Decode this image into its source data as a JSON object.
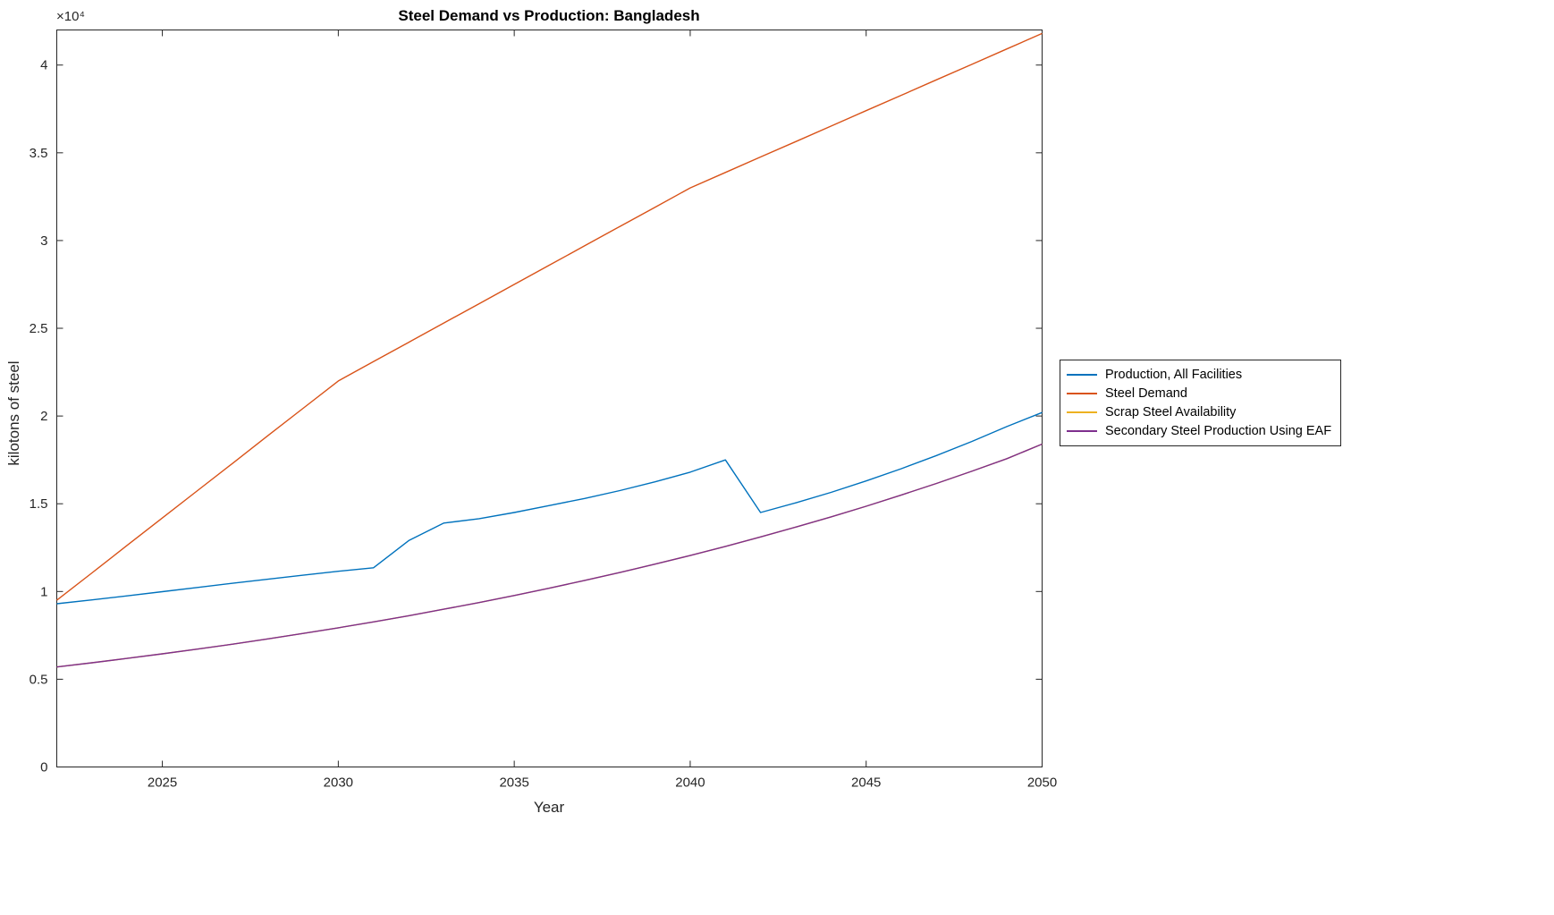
{
  "chart_data": {
    "type": "line",
    "title": "Steel Demand vs Production: Bangladesh",
    "xlabel": "Year",
    "ylabel": "kilotons of steel",
    "y_exponent": "×10⁴",
    "grid": false,
    "legend_position": "right-outside",
    "xlim": [
      2022,
      2050
    ],
    "ylim": [
      0,
      42000
    ],
    "xticks": [
      2025,
      2030,
      2035,
      2040,
      2045,
      2050
    ],
    "yticks": [
      0,
      5000,
      10000,
      15000,
      20000,
      25000,
      30000,
      35000,
      40000
    ],
    "ytick_labels": [
      "0",
      "0.5",
      "1",
      "1.5",
      "2",
      "2.5",
      "3",
      "3.5",
      "4"
    ],
    "x": [
      2022,
      2023,
      2024,
      2025,
      2026,
      2027,
      2028,
      2029,
      2030,
      2031,
      2032,
      2033,
      2034,
      2035,
      2036,
      2037,
      2038,
      2039,
      2040,
      2041,
      2042,
      2043,
      2044,
      2045,
      2046,
      2047,
      2048,
      2049,
      2050
    ],
    "series": [
      {
        "name": "Production, All Facilities",
        "color": "#0072BD",
        "values": [
          9300,
          9520,
          9750,
          9990,
          10230,
          10470,
          10700,
          10930,
          11150,
          11350,
          12900,
          13900,
          14150,
          14500,
          14900,
          15300,
          15750,
          16250,
          16800,
          17500,
          14500,
          15050,
          15650,
          16300,
          17000,
          17750,
          18550,
          19400,
          20200
        ]
      },
      {
        "name": "Steel Demand",
        "color": "#D95319",
        "values": [
          9500,
          11060,
          12630,
          14190,
          15750,
          17310,
          18880,
          20440,
          22000,
          23100,
          24200,
          25300,
          26400,
          27500,
          28600,
          29700,
          30800,
          31900,
          33000,
          33880,
          34760,
          35640,
          36520,
          37400,
          38280,
          39160,
          40040,
          40920,
          41800
        ]
      },
      {
        "name": "Scrap Steel Availability",
        "color": "#EDB120",
        "values": [
          5700,
          5940,
          6190,
          6450,
          6720,
          7000,
          7300,
          7610,
          7930,
          8270,
          8620,
          8990,
          9370,
          9770,
          10190,
          10630,
          11080,
          11560,
          12050,
          12570,
          13110,
          13670,
          14250,
          14860,
          15500,
          16160,
          16850,
          17570,
          18400
        ]
      },
      {
        "name": "Secondary Steel Production Using EAF",
        "color": "#7E2F8E",
        "values": [
          5700,
          5940,
          6190,
          6450,
          6720,
          7000,
          7300,
          7610,
          7930,
          8270,
          8620,
          8990,
          9370,
          9770,
          10190,
          10630,
          11080,
          11560,
          12050,
          12570,
          13110,
          13670,
          14250,
          14860,
          15500,
          16160,
          16850,
          17570,
          18400
        ]
      }
    ]
  }
}
